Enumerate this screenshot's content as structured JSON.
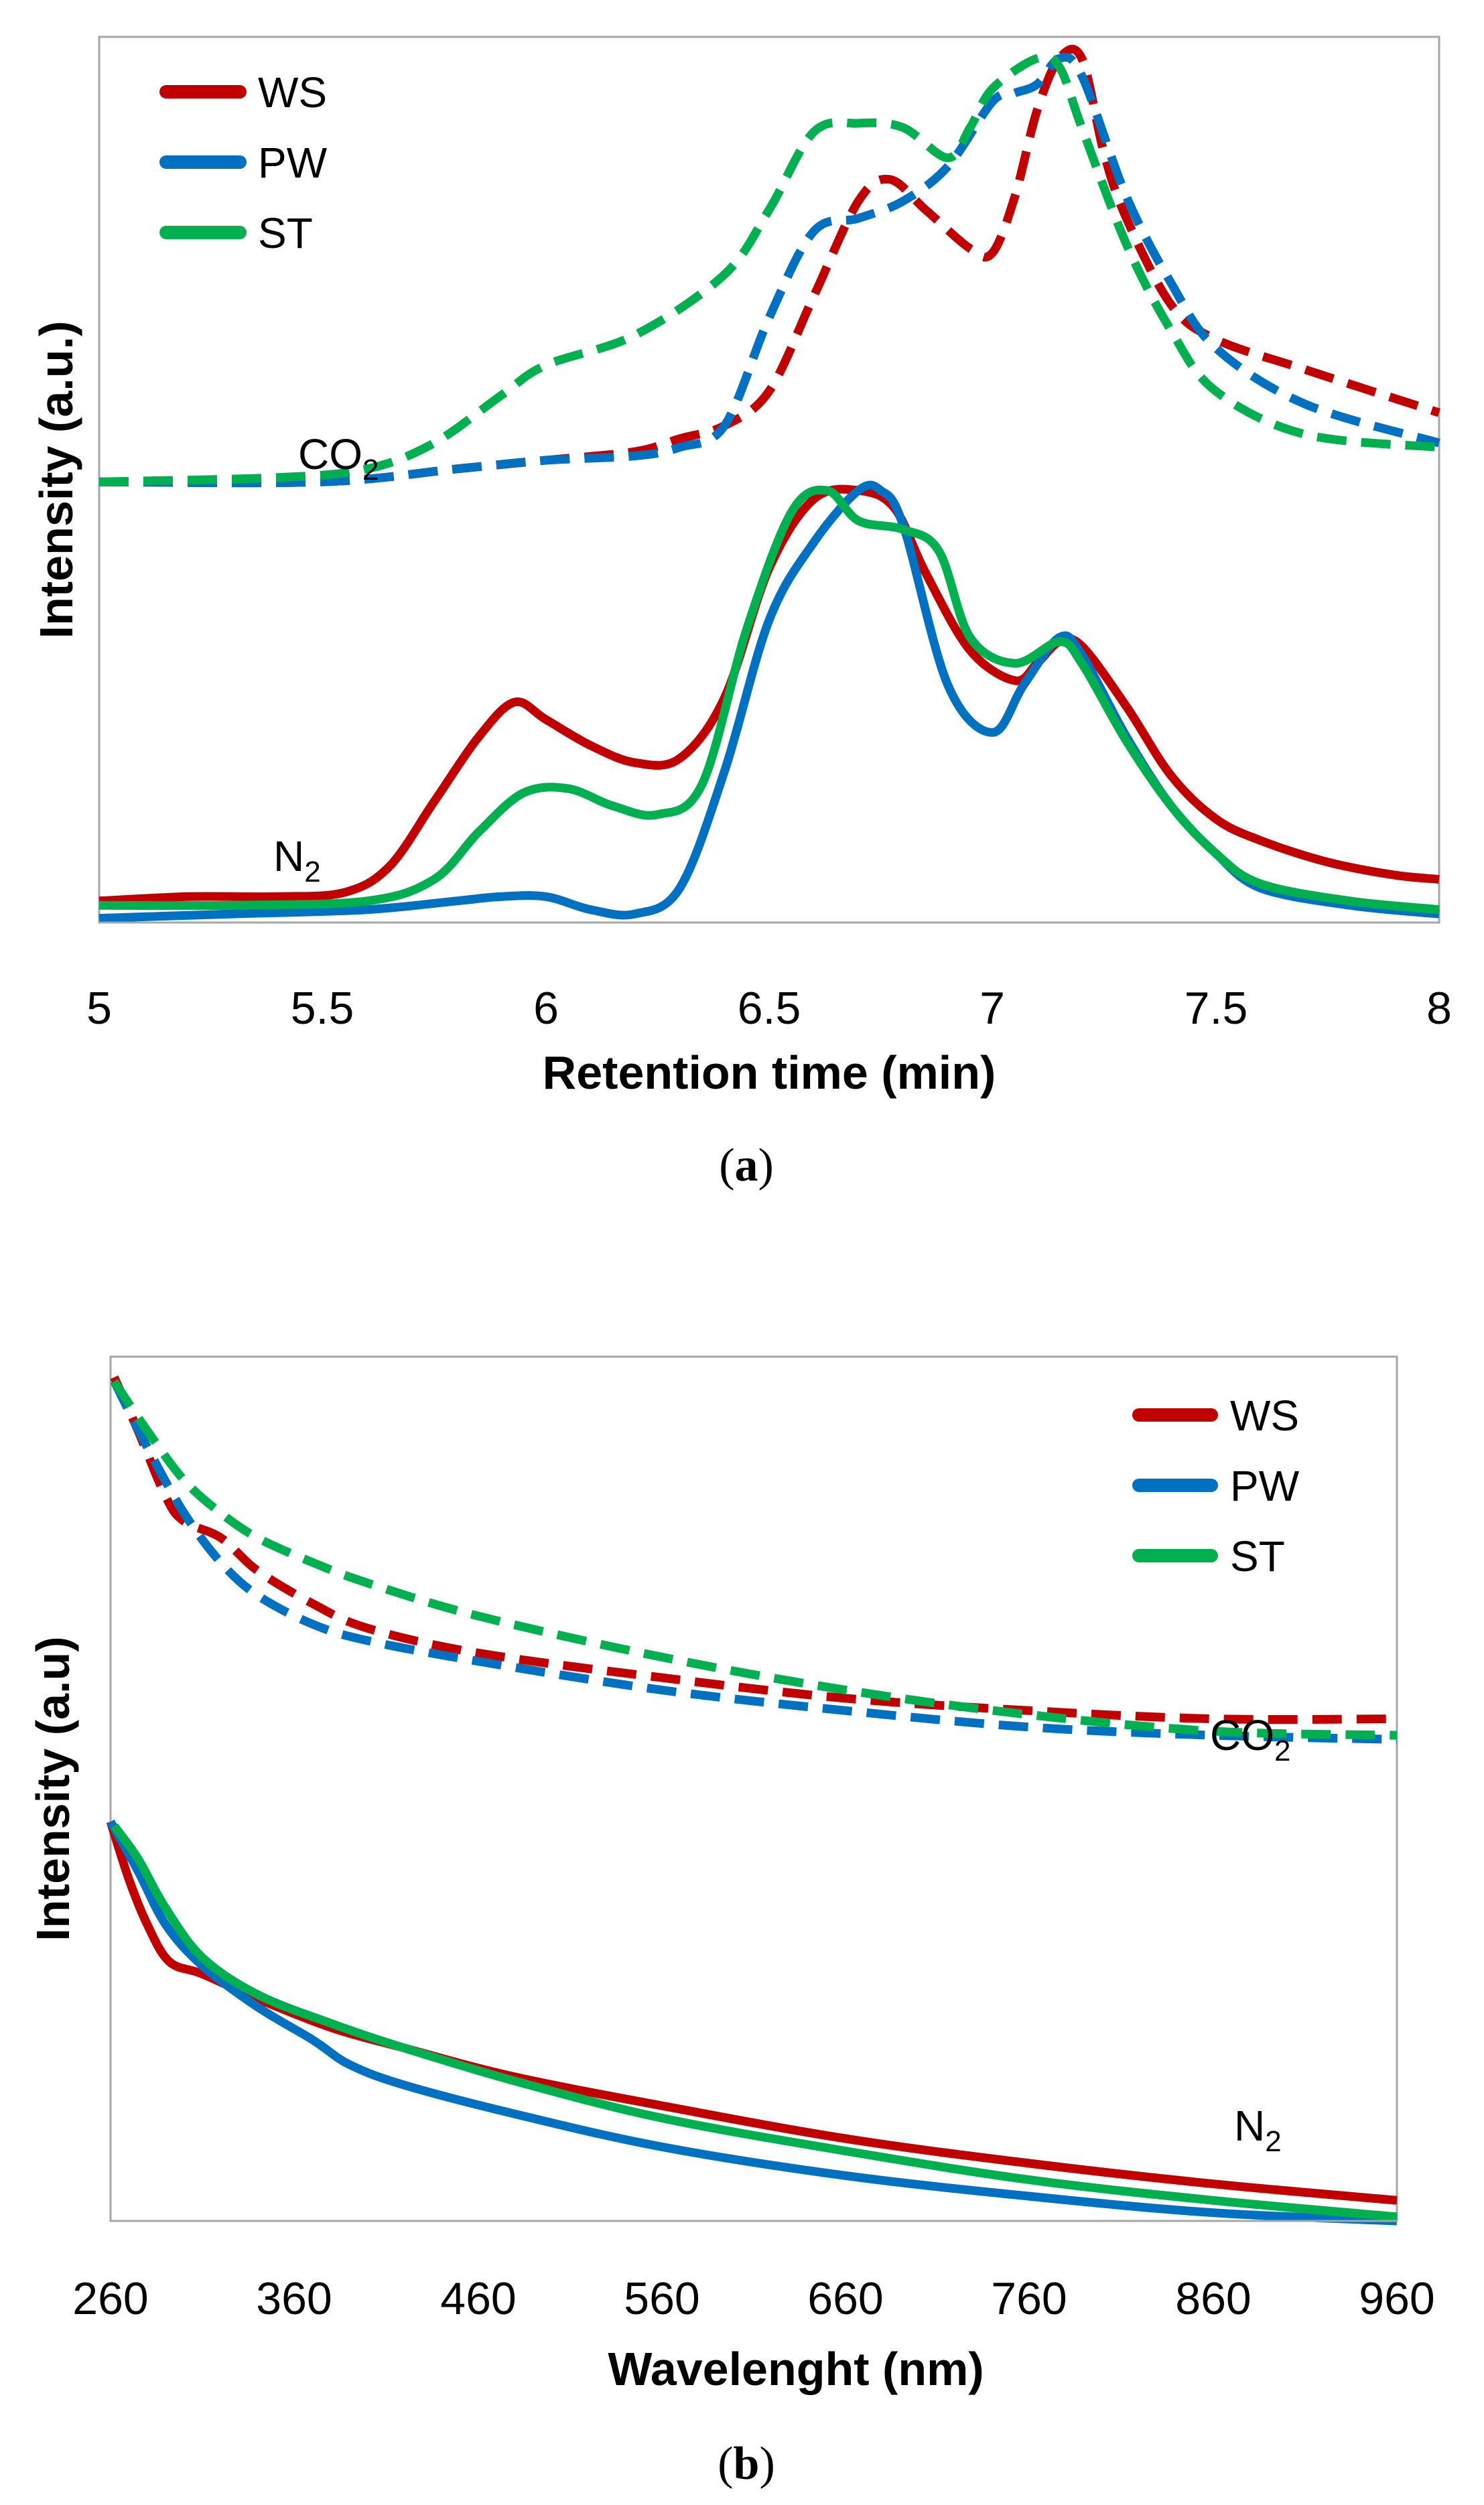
{
  "chart_data": [
    {
      "panel": "(a)",
      "panel_letter": "a",
      "type": "line",
      "xlabel": "Retention time (min)",
      "ylabel": "Intensity (a.u.)",
      "xlim": [
        5,
        8
      ],
      "ylim": [
        0,
        2.05
      ],
      "x_ticks": [
        "5",
        "5.5",
        "6",
        "6.5",
        "7",
        "7.5",
        "8"
      ],
      "y_ticks_shown": false,
      "grid": false,
      "legend_position": "top-left",
      "legend": [
        {
          "name": "WS",
          "color": "#C00000"
        },
        {
          "name": "PW",
          "color": "#0070C0"
        },
        {
          "name": "ST",
          "color": "#00B050"
        }
      ],
      "annotations": [
        {
          "base": "CO",
          "sub": "2",
          "x": 5.45,
          "y": 1.08
        },
        {
          "base": "N",
          "sub": "2",
          "x": 5.42,
          "y": 0.11
        }
      ],
      "series": [
        {
          "name": "WS",
          "group": "N2",
          "style": "solid",
          "color": "#C00000",
          "x": [
            5,
            5.2,
            5.4,
            5.55,
            5.65,
            5.75,
            5.85,
            5.93,
            6.0,
            6.1,
            6.2,
            6.3,
            6.4,
            6.5,
            6.6,
            6.7,
            6.78,
            6.85,
            6.95,
            7.05,
            7.1,
            7.15,
            7.2,
            7.3,
            7.4,
            7.5,
            7.6,
            7.75,
            7.9,
            8
          ],
          "y": [
            0.05,
            0.06,
            0.06,
            0.07,
            0.13,
            0.28,
            0.43,
            0.51,
            0.47,
            0.41,
            0.37,
            0.38,
            0.52,
            0.82,
            0.98,
            1.0,
            0.96,
            0.81,
            0.63,
            0.56,
            0.6,
            0.65,
            0.64,
            0.5,
            0.34,
            0.24,
            0.19,
            0.14,
            0.11,
            0.1
          ]
        },
        {
          "name": "PW",
          "group": "N2",
          "style": "solid",
          "color": "#0070C0",
          "x": [
            5,
            5.3,
            5.6,
            5.8,
            5.9,
            6.0,
            6.1,
            6.2,
            6.3,
            6.4,
            6.5,
            6.6,
            6.7,
            6.75,
            6.8,
            6.9,
            7.0,
            7.07,
            7.15,
            7.2,
            7.3,
            7.4,
            7.5,
            7.6,
            7.8,
            8
          ],
          "y": [
            0.01,
            0.02,
            0.03,
            0.05,
            0.06,
            0.06,
            0.03,
            0.02,
            0.08,
            0.35,
            0.7,
            0.88,
            1.0,
            1.0,
            0.92,
            0.55,
            0.44,
            0.55,
            0.66,
            0.62,
            0.43,
            0.27,
            0.16,
            0.08,
            0.04,
            0.02
          ]
        },
        {
          "name": "ST",
          "group": "N2",
          "style": "solid",
          "color": "#00B050",
          "x": [
            5,
            5.3,
            5.6,
            5.75,
            5.85,
            5.95,
            6.05,
            6.15,
            6.25,
            6.35,
            6.45,
            6.55,
            6.63,
            6.7,
            6.8,
            6.88,
            6.95,
            7.05,
            7.15,
            7.2,
            7.3,
            7.4,
            7.5,
            7.6,
            7.8,
            8
          ],
          "y": [
            0.04,
            0.04,
            0.05,
            0.1,
            0.21,
            0.3,
            0.31,
            0.27,
            0.25,
            0.32,
            0.68,
            0.95,
            1.0,
            0.93,
            0.91,
            0.86,
            0.66,
            0.6,
            0.65,
            0.6,
            0.42,
            0.27,
            0.16,
            0.09,
            0.05,
            0.03
          ]
        },
        {
          "name": "WS",
          "group": "CO2",
          "style": "dashed",
          "color": "#C00000",
          "x": [
            5,
            5.5,
            5.8,
            6.0,
            6.2,
            6.3,
            6.4,
            6.5,
            6.6,
            6.7,
            6.77,
            6.85,
            6.95,
            7.0,
            7.05,
            7.1,
            7.15,
            7.2,
            7.25,
            7.3,
            7.4,
            7.5,
            7.7,
            8
          ],
          "y": [
            1.02,
            1.02,
            1.05,
            1.07,
            1.09,
            1.12,
            1.15,
            1.23,
            1.45,
            1.67,
            1.72,
            1.65,
            1.56,
            1.55,
            1.68,
            1.88,
            2.0,
            2.0,
            1.78,
            1.63,
            1.43,
            1.35,
            1.28,
            1.18
          ]
        },
        {
          "name": "PW",
          "group": "CO2",
          "style": "dashed",
          "color": "#0070C0",
          "x": [
            5,
            5.5,
            5.8,
            6.0,
            6.2,
            6.3,
            6.4,
            6.5,
            6.6,
            6.7,
            6.8,
            6.9,
            7.0,
            7.05,
            7.1,
            7.15,
            7.2,
            7.3,
            7.4,
            7.5,
            7.7,
            8
          ],
          "y": [
            1.02,
            1.02,
            1.05,
            1.07,
            1.08,
            1.1,
            1.15,
            1.4,
            1.6,
            1.63,
            1.67,
            1.75,
            1.9,
            1.92,
            1.94,
            2.0,
            1.96,
            1.68,
            1.48,
            1.33,
            1.2,
            1.11
          ]
        },
        {
          "name": "ST",
          "group": "CO2",
          "style": "dashed",
          "color": "#00B050",
          "x": [
            5,
            5.4,
            5.6,
            5.75,
            5.9,
            6.0,
            6.2,
            6.4,
            6.5,
            6.6,
            6.7,
            6.8,
            6.9,
            6.95,
            7.0,
            7.1,
            7.15,
            7.2,
            7.3,
            7.4,
            7.5,
            7.7,
            8
          ],
          "y": [
            1.02,
            1.03,
            1.05,
            1.11,
            1.22,
            1.29,
            1.36,
            1.5,
            1.65,
            1.83,
            1.85,
            1.84,
            1.77,
            1.84,
            1.93,
            2.0,
            1.98,
            1.84,
            1.57,
            1.37,
            1.23,
            1.13,
            1.1
          ]
        }
      ]
    },
    {
      "panel": "(b)",
      "panel_letter": "b",
      "type": "line",
      "xlabel": "Wavelenght (nm)",
      "ylabel": "Intensity (a.u)",
      "xlim": [
        260,
        960
      ],
      "ylim": [
        0,
        2.1
      ],
      "x_ticks": [
        "260",
        "360",
        "460",
        "560",
        "660",
        "760",
        "860",
        "960"
      ],
      "y_ticks_shown": false,
      "grid": false,
      "legend_position": "top-right",
      "legend": [
        {
          "name": "WS",
          "color": "#C00000"
        },
        {
          "name": "PW",
          "color": "#0070C0"
        },
        {
          "name": "ST",
          "color": "#00B050"
        }
      ],
      "annotations": [
        {
          "base": "CO",
          "sub": "2",
          "x": 880,
          "y": 1.3
        },
        {
          "base": "N",
          "sub": "2",
          "x": 895,
          "y": 0.13
        }
      ],
      "series": [
        {
          "name": "WS",
          "group": "N2",
          "style": "solid",
          "color": "#C00000",
          "x": [
            260,
            270,
            280,
            292,
            310,
            340,
            380,
            420,
            480,
            560,
            660,
            760,
            860,
            960
          ],
          "y": [
            0.97,
            0.83,
            0.72,
            0.63,
            0.6,
            0.54,
            0.47,
            0.42,
            0.35,
            0.28,
            0.2,
            0.14,
            0.09,
            0.05
          ]
        },
        {
          "name": "PW",
          "group": "N2",
          "style": "solid",
          "color": "#0070C0",
          "x": [
            260,
            275,
            290,
            310,
            340,
            370,
            390,
            420,
            480,
            560,
            660,
            760,
            860,
            960
          ],
          "y": [
            0.97,
            0.85,
            0.72,
            0.62,
            0.52,
            0.44,
            0.38,
            0.33,
            0.26,
            0.18,
            0.11,
            0.06,
            0.02,
            0.0
          ]
        },
        {
          "name": "ST",
          "group": "N2",
          "style": "solid",
          "color": "#00B050",
          "x": [
            262,
            275,
            290,
            310,
            340,
            380,
            420,
            480,
            560,
            660,
            760,
            860,
            960
          ],
          "y": [
            0.96,
            0.88,
            0.76,
            0.64,
            0.55,
            0.48,
            0.42,
            0.34,
            0.25,
            0.17,
            0.1,
            0.05,
            0.01
          ]
        },
        {
          "name": "WS",
          "group": "CO2",
          "style": "dashed",
          "color": "#C00000",
          "x": [
            262,
            275,
            290,
            300,
            320,
            340,
            370,
            400,
            460,
            560,
            660,
            760,
            860,
            960
          ],
          "y": [
            2.05,
            1.92,
            1.76,
            1.7,
            1.66,
            1.58,
            1.5,
            1.44,
            1.38,
            1.32,
            1.27,
            1.24,
            1.22,
            1.22
          ]
        },
        {
          "name": "PW",
          "group": "CO2",
          "style": "dashed",
          "color": "#0070C0",
          "x": [
            262,
            280,
            300,
            320,
            340,
            370,
            400,
            460,
            560,
            660,
            760,
            860,
            960
          ],
          "y": [
            2.04,
            1.88,
            1.72,
            1.6,
            1.52,
            1.45,
            1.41,
            1.36,
            1.29,
            1.24,
            1.2,
            1.18,
            1.17
          ]
        },
        {
          "name": "ST",
          "group": "CO2",
          "style": "dashed",
          "color": "#00B050",
          "x": [
            262,
            280,
            300,
            320,
            340,
            370,
            400,
            460,
            560,
            660,
            760,
            860,
            960
          ],
          "y": [
            2.04,
            1.92,
            1.8,
            1.72,
            1.66,
            1.6,
            1.55,
            1.47,
            1.37,
            1.29,
            1.23,
            1.19,
            1.18
          ]
        }
      ]
    }
  ]
}
